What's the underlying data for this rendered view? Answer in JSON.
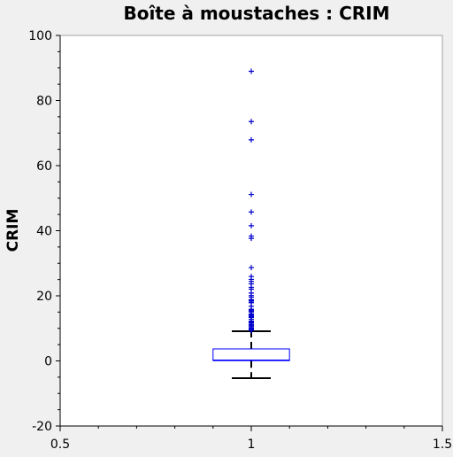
{
  "chart_data": {
    "type": "box",
    "title": "Boîte à moustaches : CRIM",
    "xlabel": "",
    "ylabel": "CRIM",
    "xlim": [
      0.5,
      1.5
    ],
    "ylim": [
      -20,
      100
    ],
    "x_ticks": [
      0.5,
      1,
      1.5
    ],
    "x_tick_labels": [
      "0.5",
      "1",
      "1.5"
    ],
    "y_ticks": [
      -20,
      0,
      20,
      40,
      60,
      80,
      100
    ],
    "y_tick_labels": [
      "-20",
      "0",
      "20",
      "40",
      "60",
      "80",
      "100"
    ],
    "grid": false,
    "legend": "none",
    "box": {
      "position": 1,
      "width": 0.2,
      "q1": 0.08,
      "median": 0.26,
      "q3": 3.68,
      "whisker_low": -5.31,
      "whisker_high": 9.1
    },
    "outliers": [
      88.98,
      73.53,
      67.92,
      51.14,
      45.75,
      41.53,
      38.35,
      37.66,
      28.66,
      25.94,
      25.05,
      24.39,
      23.65,
      22.6,
      22.05,
      20.85,
      20.08,
      19.61,
      18.81,
      18.5,
      18.08,
      17.87,
      16.81,
      15.86,
      15.58,
      15.29,
      15.02,
      14.44,
      14.33,
      14.24,
      14.05,
      13.68,
      13.52,
      13.36,
      12.8,
      12.25,
      12.05,
      11.95,
      11.82,
      11.58,
      11.16,
      11.11,
      10.83,
      10.67,
      10.23,
      10.06,
      9.97,
      9.92,
      9.82,
      9.59,
      9.51,
      9.39,
      9.33
    ],
    "colors": {
      "box": "#0000ff",
      "outlier": "#0000cc",
      "whisker": "#000000",
      "plot_background": "#ffffff",
      "page_background": "#f0f0f0",
      "frame": "#a0a0a0"
    }
  }
}
